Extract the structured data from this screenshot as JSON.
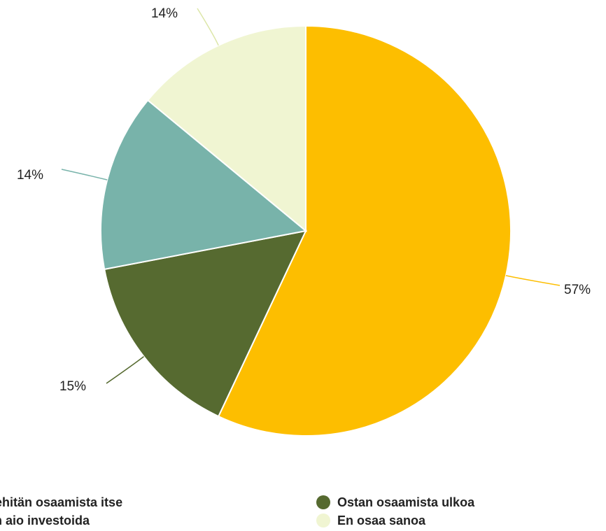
{
  "chart_data": {
    "type": "pie",
    "title": "",
    "slices": [
      {
        "label": "Kehitän osaamista itse",
        "value": 57,
        "display": "57%",
        "color": "#FDBE00"
      },
      {
        "label": "Ostan osaamista ulkoa",
        "value": 15,
        "display": "15%",
        "color": "#566A30"
      },
      {
        "label": "En aio investoida",
        "value": 14,
        "display": "14%",
        "color": "#78B3AA"
      },
      {
        "label": "En osaa sanoa",
        "value": 14,
        "display": "14%",
        "color": "#F0F5D2"
      }
    ],
    "legend": {
      "placement": "bottom",
      "entries": [
        "Kehitän osaamista itse",
        "En aio investoida",
        "Ostan osaamista ulkoa",
        "En osaa sanoa"
      ]
    }
  }
}
